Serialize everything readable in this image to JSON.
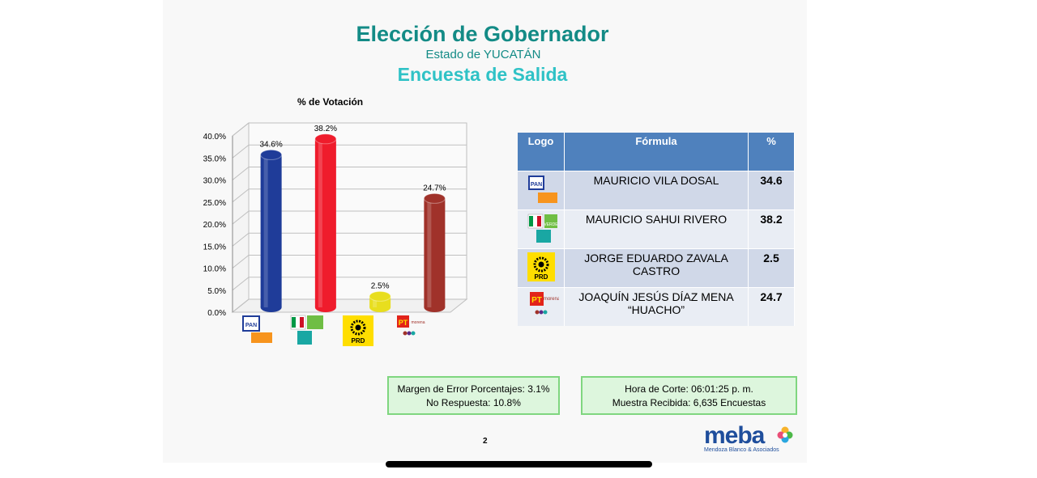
{
  "title": "Elección de Gobernador",
  "subtitle": "Estado de YUCATÁN",
  "subtitle2": "Encuesta de Salida",
  "chart_data": {
    "type": "bar",
    "title": "% de Votación",
    "categories": [
      "PAN",
      "PRI-Verde-Nueva Alianza",
      "PRD",
      "PT-Morena"
    ],
    "values": [
      34.6,
      38.2,
      2.5,
      24.7
    ],
    "value_labels": [
      "34.6%",
      "38.2%",
      "2.5%",
      "24.7%"
    ],
    "colors": [
      "#1f3c99",
      "#ef1c2c",
      "#e8de1e",
      "#a0322a"
    ],
    "ylim": [
      0,
      40
    ],
    "yticks": [
      "0.0%",
      "5.0%",
      "10.0%",
      "15.0%",
      "20.0%",
      "25.0%",
      "30.0%",
      "35.0%",
      "40.0%"
    ],
    "grid": true,
    "legend": "none"
  },
  "table": {
    "headers": [
      "Logo",
      "Fórmula",
      "%"
    ],
    "rows": [
      {
        "logo": "pan-logo",
        "formula": "MAURICIO VILA DOSAL",
        "pct": "34.6"
      },
      {
        "logo": "pri-verde-alianza-logo",
        "formula": "MAURICIO SAHUI RIVERO",
        "pct": "38.2"
      },
      {
        "logo": "prd-logo",
        "formula": "JORGE EDUARDO ZAVALA CASTRO",
        "pct": "2.5"
      },
      {
        "logo": "pt-morena-logo",
        "formula": "JOAQUÍN JESÚS DÍAZ MENA “HUACHO”",
        "pct": "24.7"
      }
    ]
  },
  "box_left": {
    "line1": "Margen de Error Porcentajes: 3.1%",
    "line2": "No Respuesta: 10.8%"
  },
  "box_right": {
    "line1": "Hora de Corte: 06:01:25 p. m.",
    "line2": "Muestra Recibida: 6,635 Encuestas"
  },
  "page_number": "2",
  "brand": {
    "name": "meba",
    "tagline": "Mendoza Blanco & Asociados"
  },
  "logo_text": {
    "pan": "PAN",
    "prd": "PRD",
    "pt": "PT",
    "morena": "morena",
    "alianza": "alianza",
    "verde": "VERDE"
  }
}
